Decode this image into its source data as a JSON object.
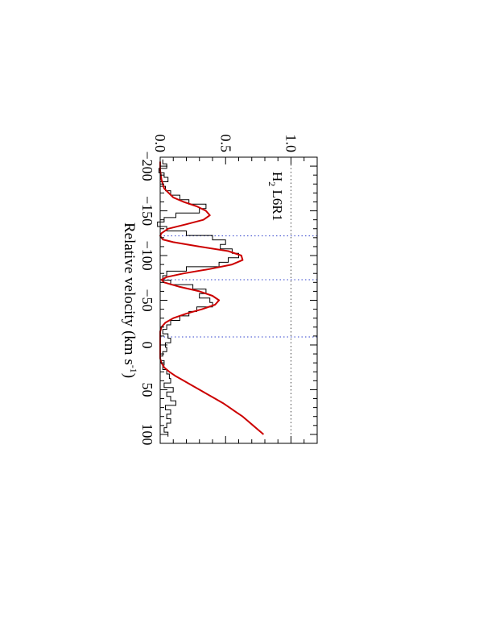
{
  "chart_data": {
    "type": "line",
    "orientation": "rotated-90-clockwise",
    "xlabel": "Relative velocity (km s",
    "xlabel_sup": "-1",
    "xlabel_close": ")",
    "ylabel": "",
    "annotation": {
      "base": "H",
      "sub": "2",
      "rest": " L6R1"
    },
    "xlim": [
      -210,
      110
    ],
    "ylim": [
      0.0,
      1.2
    ],
    "x_ticks": [
      -200,
      -150,
      -100,
      -50,
      0,
      50,
      100
    ],
    "x_tick_labels": [
      "−200",
      "−150",
      "−100",
      "−50",
      "0",
      "50",
      "100"
    ],
    "y_ticks": [
      0.0,
      0.5,
      1.0
    ],
    "y_tick_labels": [
      "0.0",
      "0.5",
      "1.0"
    ],
    "reference_lines": {
      "continuum_level": 1.0,
      "zero_level": 0.0,
      "component_velocities": [
        -122,
        -73,
        -9
      ]
    },
    "colors": {
      "data": "#000000",
      "model": "#cc0000",
      "reference": "#444444",
      "components": "#3344cc"
    },
    "series": [
      {
        "name": "",
        "style": "histogram",
        "x": [
          -205,
          -200,
          -195,
          -190,
          -185,
          -180,
          -175,
          -170,
          -165,
          -160,
          -155,
          -150,
          -145,
          -140,
          -135,
          -130,
          -125,
          -120,
          -115,
          -110,
          -105,
          -100,
          -95,
          -90,
          -85,
          -80,
          -75,
          -70,
          -65,
          -60,
          -55,
          -50,
          -45,
          -40,
          -35,
          -30,
          -25,
          -20,
          -15,
          -10,
          -5,
          0,
          5,
          10,
          15,
          20,
          25,
          30,
          35,
          40,
          45,
          50,
          55,
          60,
          65,
          70,
          75,
          80,
          85,
          90,
          95,
          100
        ],
        "y": [
          0.02,
          0.05,
          -0.01,
          0.03,
          0.06,
          0.0,
          0.04,
          0.08,
          0.15,
          0.22,
          0.35,
          0.3,
          0.12,
          0.03,
          -0.02,
          0.05,
          0.2,
          0.4,
          0.5,
          0.46,
          0.55,
          0.6,
          0.52,
          0.45,
          0.2,
          0.05,
          0.02,
          0.08,
          0.25,
          0.35,
          0.3,
          0.38,
          0.4,
          0.28,
          0.22,
          0.15,
          0.08,
          0.05,
          0.02,
          0.06,
          0.08,
          0.04,
          0.05,
          0.02,
          0.0,
          0.03,
          0.02,
          0.05,
          0.07,
          0.08,
          0.03,
          0.1,
          0.05,
          0.08,
          0.12,
          0.04,
          0.08,
          0.05,
          0.08,
          0.05,
          0.03,
          0.06
        ]
      },
      {
        "name": "",
        "style": "line",
        "x": [
          -205,
          -195,
          -185,
          -175,
          -165,
          -160,
          -155,
          -150,
          -145,
          -140,
          -135,
          -130,
          -125,
          -122,
          -118,
          -115,
          -110,
          -105,
          -100,
          -95,
          -90,
          -85,
          -80,
          -76,
          -73,
          -70,
          -65,
          -60,
          -55,
          -50,
          -45,
          -40,
          -35,
          -30,
          -25,
          -20,
          -15,
          -10,
          -5,
          0,
          5,
          10,
          15,
          20,
          25,
          30,
          35,
          40,
          45,
          50,
          55,
          60,
          65,
          70,
          75,
          80,
          85,
          90,
          95,
          100
        ],
        "y": [
          0.0,
          0.0,
          0.01,
          0.03,
          0.1,
          0.18,
          0.28,
          0.35,
          0.38,
          0.33,
          0.2,
          0.06,
          0.01,
          0.0,
          0.02,
          0.1,
          0.3,
          0.52,
          0.62,
          0.63,
          0.55,
          0.38,
          0.18,
          0.05,
          0.01,
          0.03,
          0.15,
          0.3,
          0.4,
          0.45,
          0.42,
          0.32,
          0.2,
          0.1,
          0.04,
          0.01,
          0.0,
          0.0,
          0.0,
          0.0,
          0.0,
          0.0,
          0.0,
          0.01,
          0.03,
          0.07,
          0.12,
          0.18,
          0.24,
          0.3,
          0.36,
          0.42,
          0.48,
          0.53,
          0.58,
          0.63,
          0.67,
          0.71,
          0.75,
          0.79
        ]
      }
    ]
  }
}
